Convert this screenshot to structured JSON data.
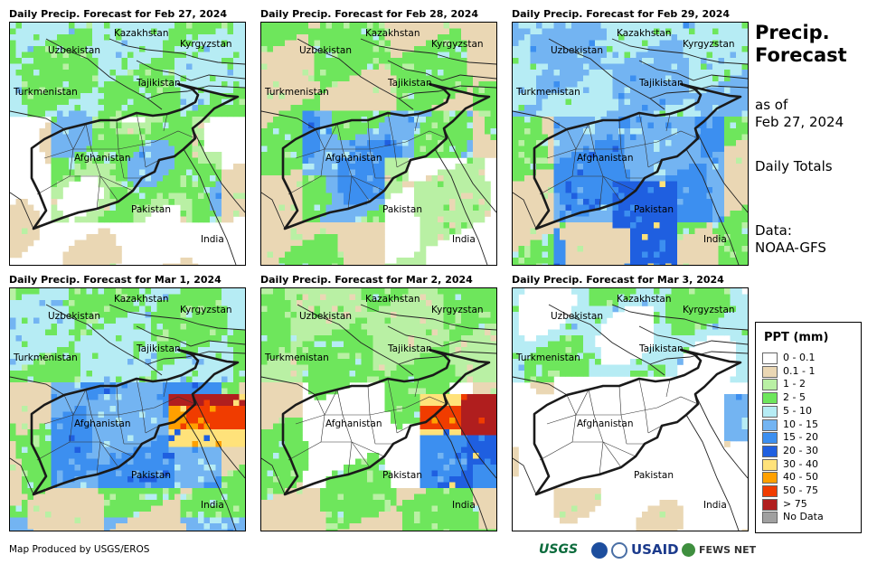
{
  "panels": [
    {
      "title": "Daily Precip. Forecast for Feb 27, 2024"
    },
    {
      "title": "Daily Precip. Forecast for Feb 28, 2024"
    },
    {
      "title": "Daily Precip. Forecast for Feb 29, 2024"
    },
    {
      "title": "Daily Precip. Forecast for Mar 1, 2024"
    },
    {
      "title": "Daily Precip. Forecast for Mar 2, 2024"
    },
    {
      "title": "Daily Precip. Forecast for Mar 3, 2024"
    }
  ],
  "map_labels": {
    "kazakhstan": "Kazakhstan",
    "kyrgyzstan": "Kyrgyzstan",
    "uzbekistan": "Uzbekistan",
    "tajikistan": "Tajikistan",
    "turkmenistan": "Turkmenistan",
    "afghanistan": "Afghanistan",
    "pakistan": "Pakistan",
    "india": "India"
  },
  "side": {
    "title_line1": "Precip.",
    "title_line2": "Forecast",
    "asof_line1": "as of",
    "asof_line2": "Feb 27, 2024",
    "daily_totals": "Daily Totals",
    "data_line1": "Data:",
    "data_line2": "NOAA-GFS"
  },
  "legend": {
    "title": "PPT (mm)",
    "items": [
      {
        "label": "0 - 0.1",
        "color": "#ffffff"
      },
      {
        "label": "0.1 - 1",
        "color": "#ead7b4"
      },
      {
        "label": "1 - 2",
        "color": "#b9f0a4"
      },
      {
        "label": "2 - 5",
        "color": "#6ee65c"
      },
      {
        "label": "5 - 10",
        "color": "#b6ecf4"
      },
      {
        "label": "10 - 15",
        "color": "#73b4f2"
      },
      {
        "label": "15 - 20",
        "color": "#3c8ff0"
      },
      {
        "label": "20 - 30",
        "color": "#1f5fe0"
      },
      {
        "label": "30 - 40",
        "color": "#ffe27a"
      },
      {
        "label": "40 - 50",
        "color": "#ffa000"
      },
      {
        "label": "50 - 75",
        "color": "#f03c00"
      },
      {
        "label": "> 75",
        "color": "#b01e1e"
      },
      {
        "label": "No Data",
        "color": "#a0a0a0"
      }
    ]
  },
  "footer": {
    "credit": "Map Produced by USGS/EROS"
  },
  "logos": {
    "usgs": "USGS",
    "usaid": "USAID",
    "fewsnet": "FEWS NET"
  }
}
